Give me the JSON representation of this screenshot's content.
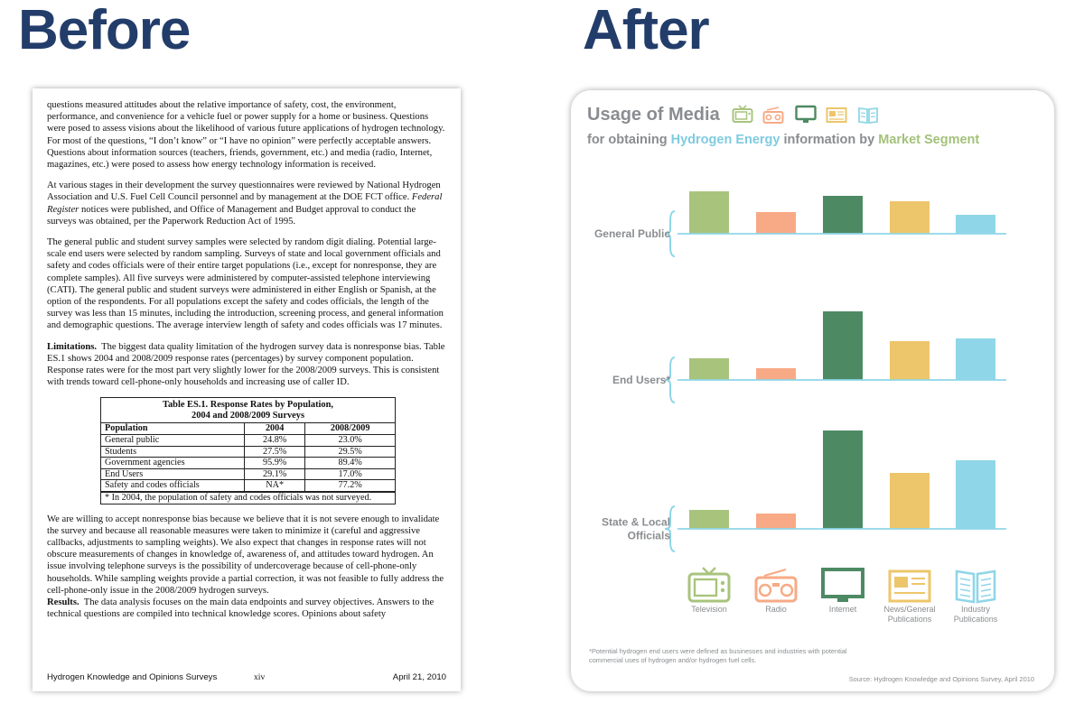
{
  "headings": {
    "before": "Before",
    "after": "After"
  },
  "document": {
    "para1": "questions measured attitudes about the relative importance of safety, cost, the environment, performance, and convenience for a vehicle fuel or power supply for a home or business. Questions were posed to assess visions about the likelihood of various future applications of hydrogen technology. For most of the questions, “I don’t know” or “I have no opinion” were perfectly acceptable answers. Questions about information sources (teachers, friends, government, etc.) and media (radio, Internet, magazines, etc.) were posed to assess how energy technology information is received.",
    "para2_a": "At various stages in their development the survey questionnaires were reviewed by National Hydrogen Association and U.S. Fuel Cell Council personnel and by management at the DOE FCT office.",
    "para2_b": "Federal Register",
    "para2_c": "notices were published, and Office of Management and Budget approval to conduct the surveys was obtained, per the Paperwork Reduction Act of 1995.",
    "para3": "The general public and student survey samples were selected by random digit dialing. Potential large-scale end users were selected by random sampling. Surveys of state and local government officials and safety and codes officials were of their entire target populations (i.e., except for nonresponse, they are complete samples). All five surveys were administered by computer-assisted telephone interviewing (CATI). The general public and student surveys were administered in either English or Spanish, at the option of the respondents. For all populations except the safety and codes officials, the length of the survey was less than 15 minutes, including the introduction, screening process, and general information and demographic questions. The average interview length of safety and codes officials was 17 minutes.",
    "para4_head": "Limitations.",
    "para4": "The biggest data quality limitation of the hydrogen survey data is nonresponse bias. Table ES.1 shows 2004 and 2008/2009 response rates (percentages) by survey component population. Response rates were for the most part very slightly lower for the 2008/2009 surveys. This is consistent with trends toward cell-phone-only households and increasing use of caller ID.",
    "table": {
      "title_line1": "Table ES.1. Response Rates by Population,",
      "title_line2": "2004 and 2008/2009 Surveys",
      "headers": [
        "Population",
        "2004",
        "2008/2009"
      ],
      "rows": [
        [
          "General public",
          "24.8%",
          "23.0%"
        ],
        [
          "Students",
          "27.5%",
          "29.5%"
        ],
        [
          "Government agencies",
          "95.9%",
          "89.4%"
        ],
        [
          "End Users",
          "29.1%",
          "17.0%"
        ],
        [
          "Safety and codes officials",
          "NA*",
          "77.2%"
        ]
      ],
      "note": "* In 2004, the population of safety and codes officials was not surveyed."
    },
    "para5": "We are willing to accept nonresponse bias because we believe that it is not severe enough to invalidate the survey and because all reasonable measures were taken to minimize it (careful and aggressive callbacks, adjustments to sampling weights).  We also expect that changes in response rates will not obscure measurements of changes in knowledge of, awareness of, and attitudes toward hydrogen. An issue involving telephone surveys is the possibility of undercoverage because of cell-phone-only households. While sampling weights provide a partial correction, it was not feasible to fully address the cell-phone-only issue in the 2008/2009 hydrogen surveys.",
    "para6_head": "Results.",
    "para6": "The data analysis focuses on the main data endpoints and survey objectives.  Answers to the technical questions are compiled into technical knowledge scores. Opinions about safety",
    "footer": {
      "left": "Hydrogen Knowledge and Opinions Surveys",
      "center": "xiv",
      "right": "April 21, 2010"
    }
  },
  "infographic": {
    "title": "Usage of Media",
    "subtitle_1": "for obtaining ",
    "subtitle_hl1": "Hydrogen Energy",
    "subtitle_2": " information by ",
    "subtitle_hl2": "Market Segment",
    "colors": {
      "television": "#a8c47c",
      "radio": "#f7aa85",
      "internet": "#4d8a64",
      "news": "#edc66b",
      "industry": "#8fd6e8"
    },
    "legend_icons": [
      "tv-icon",
      "radio-icon",
      "monitor-icon",
      "newspaper-icon",
      "book-icon"
    ],
    "footnote_line1": "*Potential hydrogen end users were defined as businesses and industries with potential",
    "footnote_line2": "commercial uses of hydrogen and/or hydrogen fuel cells.",
    "source": "Source: Hydrogen Knowledge and Opinions Survey, April 2010"
  },
  "chart_data": {
    "type": "bar",
    "title": "Usage of Media",
    "categories": [
      "Television",
      "Radio",
      "Internet",
      "News/General Publications",
      "Industry Publications"
    ],
    "legend": [
      [
        "Television"
      ],
      [
        "Radio"
      ],
      [
        "Internet"
      ],
      [
        "News/General",
        "Publications"
      ],
      [
        "Industry",
        "Publications"
      ]
    ],
    "groups": [
      {
        "name": "General Public",
        "label_lines": [
          "General Public"
        ],
        "values": [
          47,
          24,
          42,
          36,
          21
        ]
      },
      {
        "name": "End Users*",
        "label_lines": [
          "End Users*"
        ],
        "values": [
          24,
          13,
          76,
          43,
          46
        ]
      },
      {
        "name": "State & Local Officials",
        "label_lines": [
          "State & Local",
          "Officials"
        ],
        "values": [
          21,
          17,
          109,
          62,
          76
        ]
      }
    ],
    "ylim": [
      0,
      110
    ],
    "axis_labels": false,
    "grid": false
  }
}
